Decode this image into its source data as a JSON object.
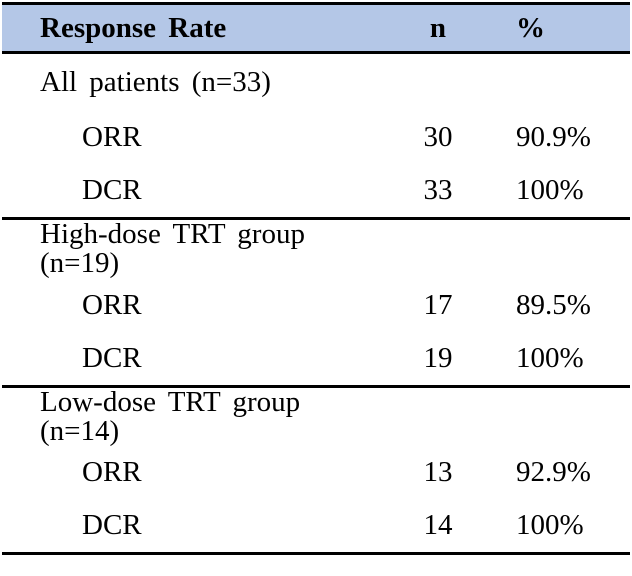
{
  "table": {
    "columns": [
      "Response Rate",
      "n",
      "%"
    ],
    "sections": [
      {
        "group": "All patients (n=33)",
        "rows": [
          {
            "label": "ORR",
            "n": "30",
            "pct": "90.9%"
          },
          {
            "label": "DCR",
            "n": "33",
            "pct": "100%"
          }
        ]
      },
      {
        "group": "High-dose TRT group (n=19)",
        "rows": [
          {
            "label": "ORR",
            "n": "17",
            "pct": "89.5%"
          },
          {
            "label": "DCR",
            "n": "19",
            "pct": "100%"
          }
        ]
      },
      {
        "group": "Low-dose TRT group (n=14)",
        "rows": [
          {
            "label": "ORR",
            "n": "13",
            "pct": "92.9%"
          },
          {
            "label": "DCR",
            "n": "14",
            "pct": "100%"
          }
        ]
      }
    ],
    "colors": {
      "header_bg": "#B4C7E7",
      "border": "#000000",
      "text": "#000000",
      "background": "#FFFFFF"
    }
  }
}
